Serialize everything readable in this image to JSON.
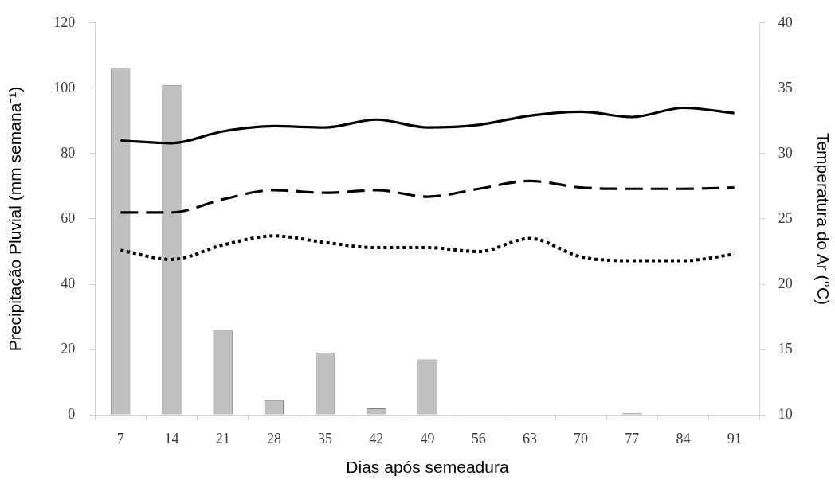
{
  "chart_data": {
    "type": "bar",
    "xlabel": "Dias após semeadura",
    "ylabel": "Precipitação Pluvial (mm semana⁻¹)",
    "y2label": "Temperatura do Ar (°C)",
    "categories": [
      "7",
      "14",
      "21",
      "28",
      "35",
      "42",
      "49",
      "56",
      "63",
      "70",
      "77",
      "84",
      "91"
    ],
    "series": [
      {
        "color": "#c0c0c0",
        "values": [
          106,
          101,
          26,
          4.5,
          19,
          2,
          17,
          0,
          0,
          0,
          0.5,
          0,
          0
        ]
      },
      {
        "type": "line",
        "axis": "y2",
        "color": "#000000",
        "line_style": "solid",
        "values": [
          31.0,
          30.8,
          31.7,
          32.1,
          32.0,
          32.6,
          32.0,
          32.2,
          32.9,
          33.2,
          32.8,
          33.5,
          33.1
        ]
      },
      {
        "type": "line",
        "axis": "y2",
        "color": "#000000",
        "line_style": "dashed",
        "values": [
          25.5,
          25.5,
          26.5,
          27.2,
          27.0,
          27.2,
          26.7,
          27.3,
          27.9,
          27.4,
          27.3,
          27.3,
          27.4
        ]
      },
      {
        "type": "line",
        "axis": "y2",
        "color": "#000000",
        "line_style": "dotted",
        "values": [
          22.6,
          21.9,
          23.0,
          23.7,
          23.2,
          22.8,
          22.8,
          22.5,
          23.5,
          22.1,
          21.8,
          21.8,
          22.3
        ]
      }
    ],
    "ylim": [
      0,
      120
    ],
    "yticks": [
      0,
      20,
      40,
      60,
      80,
      100,
      120
    ],
    "y2lim": [
      10,
      40
    ],
    "y2ticks": [
      10,
      15,
      20,
      25,
      30,
      35,
      40
    ],
    "marker": "none"
  }
}
